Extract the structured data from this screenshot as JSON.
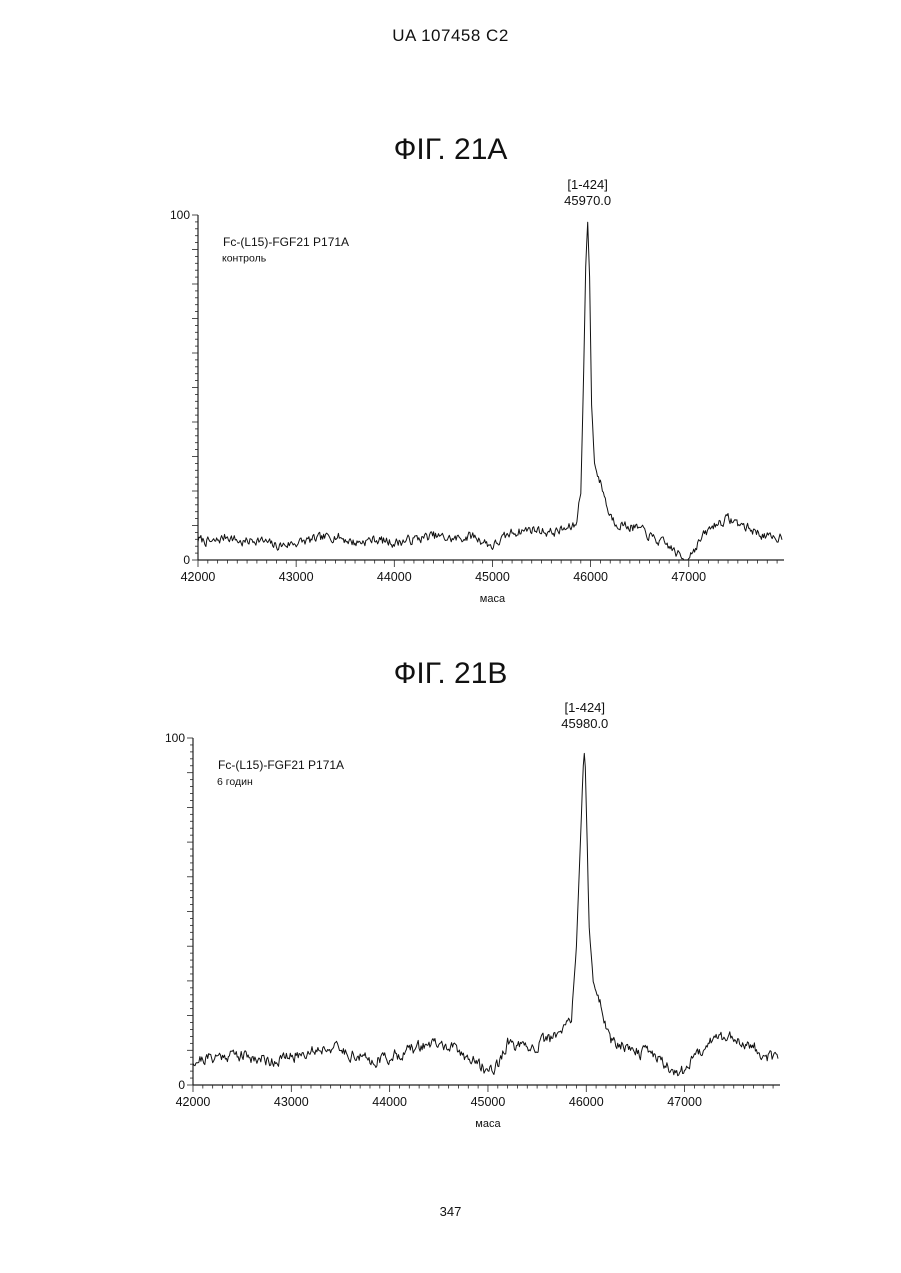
{
  "page": {
    "header": "UA   107458   C2",
    "page_number": "347"
  },
  "chart_data": [
    {
      "type": "line",
      "title": "ФІГ. 21A",
      "legend_line1": "Fc-(L15)-FGF21 P171A",
      "legend_line2": "контроль",
      "peak_label_line1": "[1-424]",
      "peak_label_line2": "45970.0",
      "xlabel": "маса",
      "ylabel": "",
      "xlim": [
        42000,
        47950
      ],
      "ylim": [
        0,
        100
      ],
      "x_ticks": [
        "42000",
        "43000",
        "44000",
        "45000",
        "46000",
        "47000"
      ],
      "y_ticks": [
        "0",
        "100"
      ],
      "series": [
        {
          "x": [
            42000,
            42150,
            42300,
            42450,
            42600,
            42800,
            43000,
            43200,
            43400,
            43600,
            43800,
            44000,
            44200,
            44400,
            44600,
            44800,
            45000,
            45200,
            45400,
            45600,
            45750,
            45850,
            45900,
            45930,
            45950,
            45970,
            45990,
            46010,
            46040,
            46080,
            46130,
            46180,
            46250,
            46350,
            46500,
            46650,
            46800,
            46950,
            47050,
            47150,
            47250,
            47400,
            47550,
            47700,
            47850,
            47950
          ],
          "y": [
            6,
            5,
            7,
            5,
            6,
            4,
            5,
            6,
            7,
            5,
            6,
            5,
            6,
            7,
            6,
            7,
            4,
            8,
            9,
            8,
            9,
            10,
            20,
            55,
            85,
            98,
            82,
            45,
            28,
            24,
            20,
            14,
            11,
            10,
            9,
            6,
            4,
            0,
            3,
            7,
            10,
            12,
            10,
            8,
            6,
            7
          ],
          "noise": 2.2,
          "seed": 7
        }
      ]
    },
    {
      "type": "line",
      "title": "ФІГ. 21В",
      "legend_line1": "Fc-(L15)-FGF21 P171A",
      "legend_line2": "6 годин",
      "peak_label_line1": "[1-424]",
      "peak_label_line2": "45980.0",
      "xlabel": "маса",
      "ylabel": "",
      "xlim": [
        42000,
        47950
      ],
      "ylim": [
        0,
        100
      ],
      "x_ticks": [
        "42000",
        "43000",
        "44000",
        "45000",
        "46000",
        "47000"
      ],
      "y_ticks": [
        "0",
        "100"
      ],
      "series": [
        {
          "x": [
            42000,
            42200,
            42400,
            42600,
            42800,
            43000,
            43200,
            43400,
            43600,
            43800,
            44000,
            44200,
            44400,
            44600,
            44800,
            45000,
            45100,
            45200,
            45400,
            45600,
            45750,
            45850,
            45900,
            45940,
            45970,
            45985,
            46000,
            46030,
            46070,
            46100,
            46130,
            46170,
            46250,
            46350,
            46450,
            46550,
            46650,
            46800,
            46950,
            47100,
            47250,
            47400,
            47550,
            47700,
            47850,
            47950
          ],
          "y": [
            7,
            8,
            9,
            8,
            7,
            8,
            10,
            11,
            9,
            7,
            8,
            10,
            12,
            11,
            8,
            4,
            6,
            12,
            10,
            13,
            15,
            20,
            40,
            70,
            92,
            98,
            80,
            45,
            30,
            27,
            25,
            20,
            13,
            12,
            11,
            9,
            10,
            6,
            3,
            8,
            13,
            14,
            13,
            11,
            8,
            7
          ],
          "noise": 2.8,
          "seed": 21
        }
      ]
    }
  ]
}
